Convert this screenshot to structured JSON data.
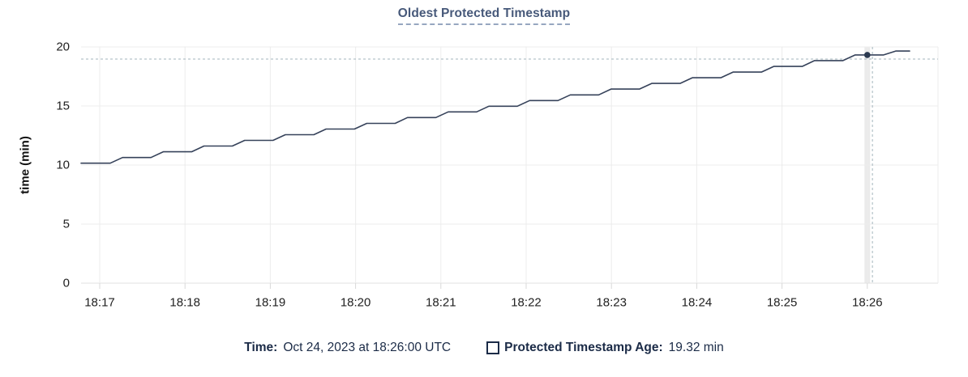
{
  "title": "Oldest Protected Timestamp",
  "legend": {
    "time_label": "Time:",
    "time_value": "Oct 24, 2023 at 18:26:00 UTC",
    "series_label": "Protected Timestamp Age:",
    "series_value": "19.32 min",
    "swatch": "hollow-square"
  },
  "colors": {
    "title": "#47597A",
    "line": "#36425A",
    "dot": "#2B3950",
    "grid": "#ECECEC",
    "axis": "#E2E2E2",
    "tick_mark": "#D9D9D9",
    "tick_text": "#212121",
    "legend_text": "#1B2B47",
    "crosshair": "#A3B4BC",
    "hover_band": "#EBEBEB"
  },
  "chart_data": {
    "type": "line",
    "title": "Oldest Protected Timestamp",
    "xlabel": "",
    "ylabel": "time (min)",
    "x_ticks": [
      "18:17",
      "18:18",
      "18:19",
      "18:20",
      "18:21",
      "18:22",
      "18:23",
      "18:24",
      "18:25",
      "18:26"
    ],
    "x_tick_minutes": [
      0,
      1,
      2,
      3,
      4,
      5,
      6,
      7,
      8,
      9
    ],
    "y_ticks": [
      0,
      5,
      10,
      15,
      20
    ],
    "ylim": [
      0,
      20
    ],
    "x_domain_minutes": [
      -0.219,
      9.83
    ],
    "grid": true,
    "legend_position": "bottom",
    "series": [
      {
        "name": "Protected Timestamp Age",
        "unit": "min",
        "points": [
          [
            -0.219,
            10.16
          ],
          [
            0.124,
            10.16
          ],
          [
            0.268,
            10.64
          ],
          [
            0.601,
            10.64
          ],
          [
            0.745,
            11.12
          ],
          [
            1.078,
            11.12
          ],
          [
            1.222,
            11.61
          ],
          [
            1.555,
            11.61
          ],
          [
            1.7,
            12.09
          ],
          [
            2.032,
            12.09
          ],
          [
            2.177,
            12.57
          ],
          [
            2.51,
            12.57
          ],
          [
            2.654,
            13.05
          ],
          [
            2.987,
            13.05
          ],
          [
            3.131,
            13.53
          ],
          [
            3.464,
            13.53
          ],
          [
            3.608,
            14.02
          ],
          [
            3.941,
            14.02
          ],
          [
            4.086,
            14.5
          ],
          [
            4.419,
            14.5
          ],
          [
            4.563,
            14.98
          ],
          [
            4.896,
            14.98
          ],
          [
            5.04,
            15.46
          ],
          [
            5.373,
            15.46
          ],
          [
            5.517,
            15.94
          ],
          [
            5.85,
            15.94
          ],
          [
            5.995,
            16.43
          ],
          [
            6.328,
            16.43
          ],
          [
            6.472,
            16.91
          ],
          [
            6.805,
            16.91
          ],
          [
            6.949,
            17.39
          ],
          [
            7.282,
            17.39
          ],
          [
            7.426,
            17.87
          ],
          [
            7.759,
            17.87
          ],
          [
            7.903,
            18.35
          ],
          [
            8.237,
            18.35
          ],
          [
            8.381,
            18.84
          ],
          [
            8.714,
            18.84
          ],
          [
            8.858,
            19.32
          ],
          [
            9.191,
            19.32
          ],
          [
            9.334,
            19.65
          ],
          [
            9.496,
            19.65
          ]
        ]
      }
    ],
    "hover": {
      "snapped_time": "18:26:00",
      "snapped_value_min": 19.32,
      "snapped_t": 9.0,
      "cursor_t": 9.06,
      "cursor_v": 18.97
    }
  }
}
